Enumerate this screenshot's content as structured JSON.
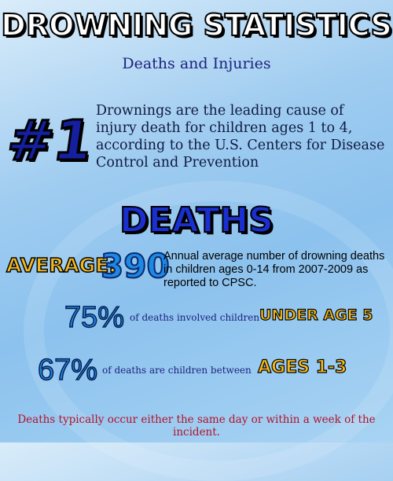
{
  "header": {
    "title": "DROWNING STATISTICS",
    "subtitle": "Deaths and Injuries"
  },
  "intro": {
    "rank": "#1",
    "text": "Drownings are the leading cause of injury death for children ages 1 to 4, according to the U.S. Centers for Disease Control and Prevention"
  },
  "deaths": {
    "heading": "DEATHS",
    "average_label": "AVERAGE:",
    "average_value": "390",
    "average_text": "Annual average number of drowning deaths in children ages 0-14 from 2007-2009 as reported to CPSC.",
    "stat1_pct": "75%",
    "stat1_text": "of deaths involved children",
    "stat1_tag": "UNDER AGE 5",
    "stat2_pct": "67%",
    "stat2_text": "of deaths are children between",
    "stat2_tag": "AGES 1-3"
  },
  "footer": {
    "note": "Deaths typically occur either the same day or within a week of the incident."
  },
  "colors": {
    "background": "#9fccf0",
    "title_fill": "#ffffff",
    "heading_blue": "#1a2fd0",
    "accent_yellow": "#f2b820",
    "stat_blue": "#1e88e6",
    "footer_red": "#b3122a"
  }
}
